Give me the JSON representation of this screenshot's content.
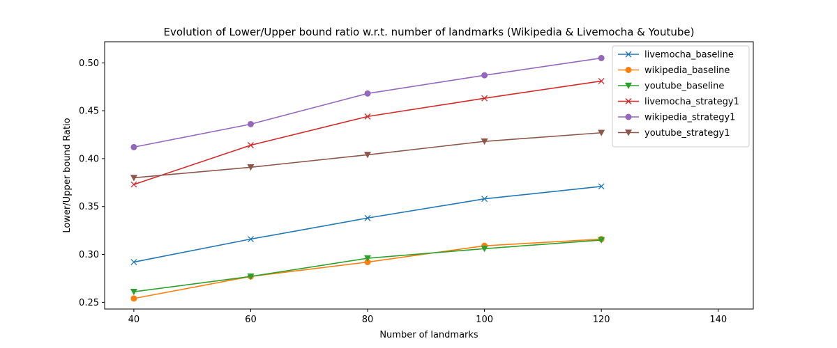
{
  "chart_data": {
    "type": "line",
    "title": "Evolution of Lower/Upper bound ratio w.r.t. number of landmarks (Wikipedia & Livemocha & Youtube)",
    "xlabel": "Number of landmarks",
    "ylabel": "Lower/Upper bound Ratio",
    "xlim": [
      35,
      146
    ],
    "ylim": [
      0.243,
      0.522
    ],
    "xticks": [
      40,
      60,
      80,
      100,
      120,
      140
    ],
    "yticks": [
      0.25,
      0.3,
      0.35,
      0.4,
      0.45,
      0.5
    ],
    "ytick_labels": [
      "0.25",
      "0.30",
      "0.35",
      "0.40",
      "0.45",
      "0.50"
    ],
    "grid": false,
    "legend_position": "top-right",
    "x": [
      40,
      60,
      80,
      100,
      120
    ],
    "series": [
      {
        "name": "livemocha_baseline",
        "color": "#1f77b4",
        "marker": "x",
        "values": [
          0.292,
          0.316,
          0.338,
          0.358,
          0.371
        ]
      },
      {
        "name": "wikipedia_baseline",
        "color": "#ff7f0e",
        "marker": "o",
        "values": [
          0.254,
          0.277,
          0.292,
          0.309,
          0.316
        ]
      },
      {
        "name": "youtube_baseline",
        "color": "#2ca02c",
        "marker": "v",
        "values": [
          0.261,
          0.277,
          0.296,
          0.306,
          0.315
        ]
      },
      {
        "name": "livemocha_strategy1",
        "color": "#d62728",
        "marker": "x",
        "values": [
          0.373,
          0.414,
          0.444,
          0.463,
          0.481
        ]
      },
      {
        "name": "wikipedia_strategy1",
        "color": "#9467bd",
        "marker": "o",
        "values": [
          0.412,
          0.436,
          0.468,
          0.487,
          0.505
        ]
      },
      {
        "name": "youtube_strategy1",
        "color": "#8c564b",
        "marker": "v",
        "values": [
          0.38,
          0.391,
          0.404,
          0.418,
          0.427
        ]
      }
    ]
  }
}
